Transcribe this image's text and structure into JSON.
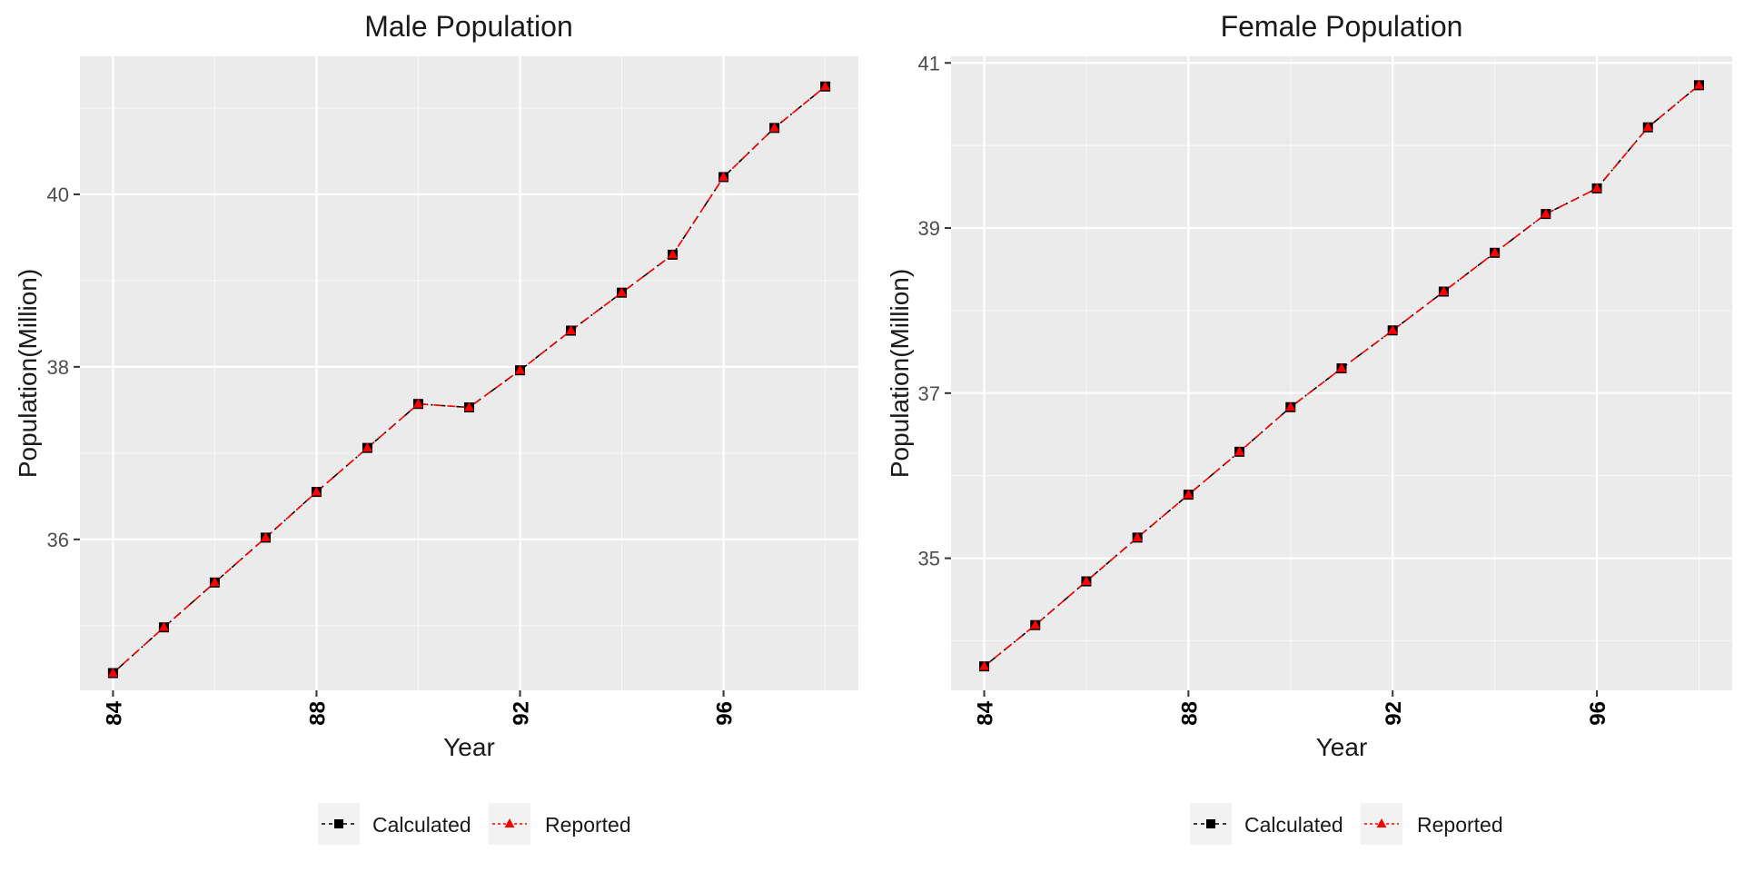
{
  "colors": {
    "panel_bg": "#ebebeb",
    "grid_major": "#ffffff",
    "grid_minor": "#f7f7f7",
    "calculated": "#000000",
    "reported": "#ff0000",
    "legend_key_bg": "#f2f2f2"
  },
  "legend": {
    "entries": [
      "Calculated",
      "Reported"
    ],
    "placement": "bottom"
  },
  "chart_data": [
    {
      "type": "line",
      "title": "Male Population",
      "xlabel": "Year",
      "ylabel": "Population(Million)",
      "xlim": [
        83.35,
        98.65
      ],
      "ylim": [
        34.25,
        41.6
      ],
      "xticks": [
        84,
        88,
        92,
        96
      ],
      "yticks": [
        36,
        38,
        40
      ],
      "x": [
        84,
        85,
        86,
        87,
        88,
        89,
        90,
        91,
        92,
        93,
        94,
        95,
        96,
        97,
        98
      ],
      "series": [
        {
          "name": "Calculated",
          "marker": "square",
          "linestyle": "dotdash",
          "values": [
            34.45,
            34.98,
            35.5,
            36.02,
            36.55,
            37.06,
            37.57,
            37.53,
            37.96,
            38.42,
            38.86,
            39.3,
            40.2,
            40.77,
            41.25
          ]
        },
        {
          "name": "Reported",
          "marker": "triangle",
          "linestyle": "dashed",
          "values": [
            34.45,
            34.98,
            35.5,
            36.02,
            36.55,
            37.06,
            37.57,
            37.53,
            37.96,
            38.42,
            38.86,
            39.3,
            40.2,
            40.77,
            41.25
          ]
        }
      ]
    },
    {
      "type": "line",
      "title": "Female Population",
      "xlabel": "Year",
      "ylabel": "Population(Million)",
      "xlim": [
        83.35,
        98.65
      ],
      "ylim": [
        33.4,
        41.08
      ],
      "xticks": [
        84,
        88,
        92,
        96
      ],
      "yticks": [
        35,
        37,
        39,
        41
      ],
      "x": [
        84,
        85,
        86,
        87,
        88,
        89,
        90,
        91,
        92,
        93,
        94,
        95,
        96,
        97,
        98
      ],
      "series": [
        {
          "name": "Calculated",
          "marker": "square",
          "linestyle": "dotdash",
          "values": [
            33.69,
            34.19,
            34.72,
            35.25,
            35.77,
            36.29,
            36.83,
            37.3,
            37.76,
            38.23,
            38.7,
            39.17,
            39.48,
            40.22,
            40.73
          ]
        },
        {
          "name": "Reported",
          "marker": "triangle",
          "linestyle": "dashed",
          "values": [
            33.69,
            34.19,
            34.72,
            35.25,
            35.77,
            36.29,
            36.83,
            37.3,
            37.76,
            38.23,
            38.7,
            39.17,
            39.48,
            40.22,
            40.73
          ]
        }
      ]
    }
  ]
}
